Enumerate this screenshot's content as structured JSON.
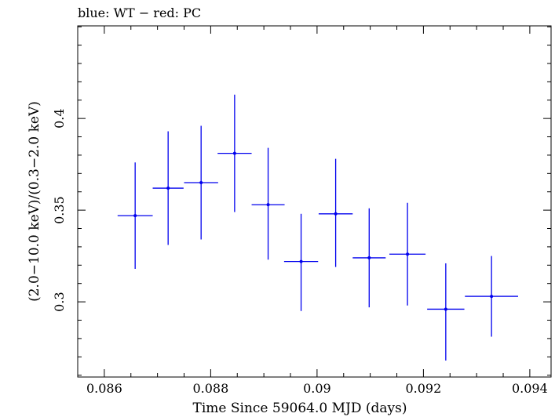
{
  "chart_data": {
    "type": "scatter",
    "title": "blue: WT − red: PC",
    "xlabel": "Time Since 59064.0 MJD (days)",
    "ylabel": "(2.0−10.0 keV)/(0.3−2.0 keV)",
    "xlim": [
      0.0855,
      0.0944
    ],
    "ylim": [
      0.259,
      0.4505
    ],
    "xticks": [
      0.086,
      0.088,
      0.09,
      0.092,
      0.094
    ],
    "xtick_labels": [
      "0.086",
      "0.088",
      "0.09",
      "0.092",
      "0.094"
    ],
    "yticks": [
      0.3,
      0.35,
      0.4
    ],
    "ytick_labels": [
      "0.3",
      "0.35",
      "0.4"
    ],
    "series": [
      {
        "name": "WT",
        "color": "#0000ee",
        "points": [
          {
            "x": 0.08658,
            "y": 0.347,
            "xerr": 0.00033,
            "yerr_lo": 0.029,
            "yerr_hi": 0.029
          },
          {
            "x": 0.0872,
            "y": 0.362,
            "xerr": 0.00029,
            "yerr_lo": 0.031,
            "yerr_hi": 0.031
          },
          {
            "x": 0.08782,
            "y": 0.365,
            "xerr": 0.00032,
            "yerr_lo": 0.031,
            "yerr_hi": 0.031
          },
          {
            "x": 0.08845,
            "y": 0.381,
            "xerr": 0.00032,
            "yerr_lo": 0.032,
            "yerr_hi": 0.032
          },
          {
            "x": 0.08908,
            "y": 0.353,
            "xerr": 0.00031,
            "yerr_lo": 0.03,
            "yerr_hi": 0.031
          },
          {
            "x": 0.0897,
            "y": 0.322,
            "xerr": 0.00032,
            "yerr_lo": 0.027,
            "yerr_hi": 0.026
          },
          {
            "x": 0.09035,
            "y": 0.348,
            "xerr": 0.00032,
            "yerr_lo": 0.029,
            "yerr_hi": 0.03
          },
          {
            "x": 0.09098,
            "y": 0.324,
            "xerr": 0.00031,
            "yerr_lo": 0.027,
            "yerr_hi": 0.027
          },
          {
            "x": 0.0917,
            "y": 0.326,
            "xerr": 0.00034,
            "yerr_lo": 0.028,
            "yerr_hi": 0.028
          },
          {
            "x": 0.09242,
            "y": 0.296,
            "xerr": 0.00035,
            "yerr_lo": 0.028,
            "yerr_hi": 0.025
          },
          {
            "x": 0.09328,
            "y": 0.303,
            "xerr": 0.0005,
            "yerr_lo": 0.022,
            "yerr_hi": 0.022
          }
        ]
      }
    ]
  }
}
